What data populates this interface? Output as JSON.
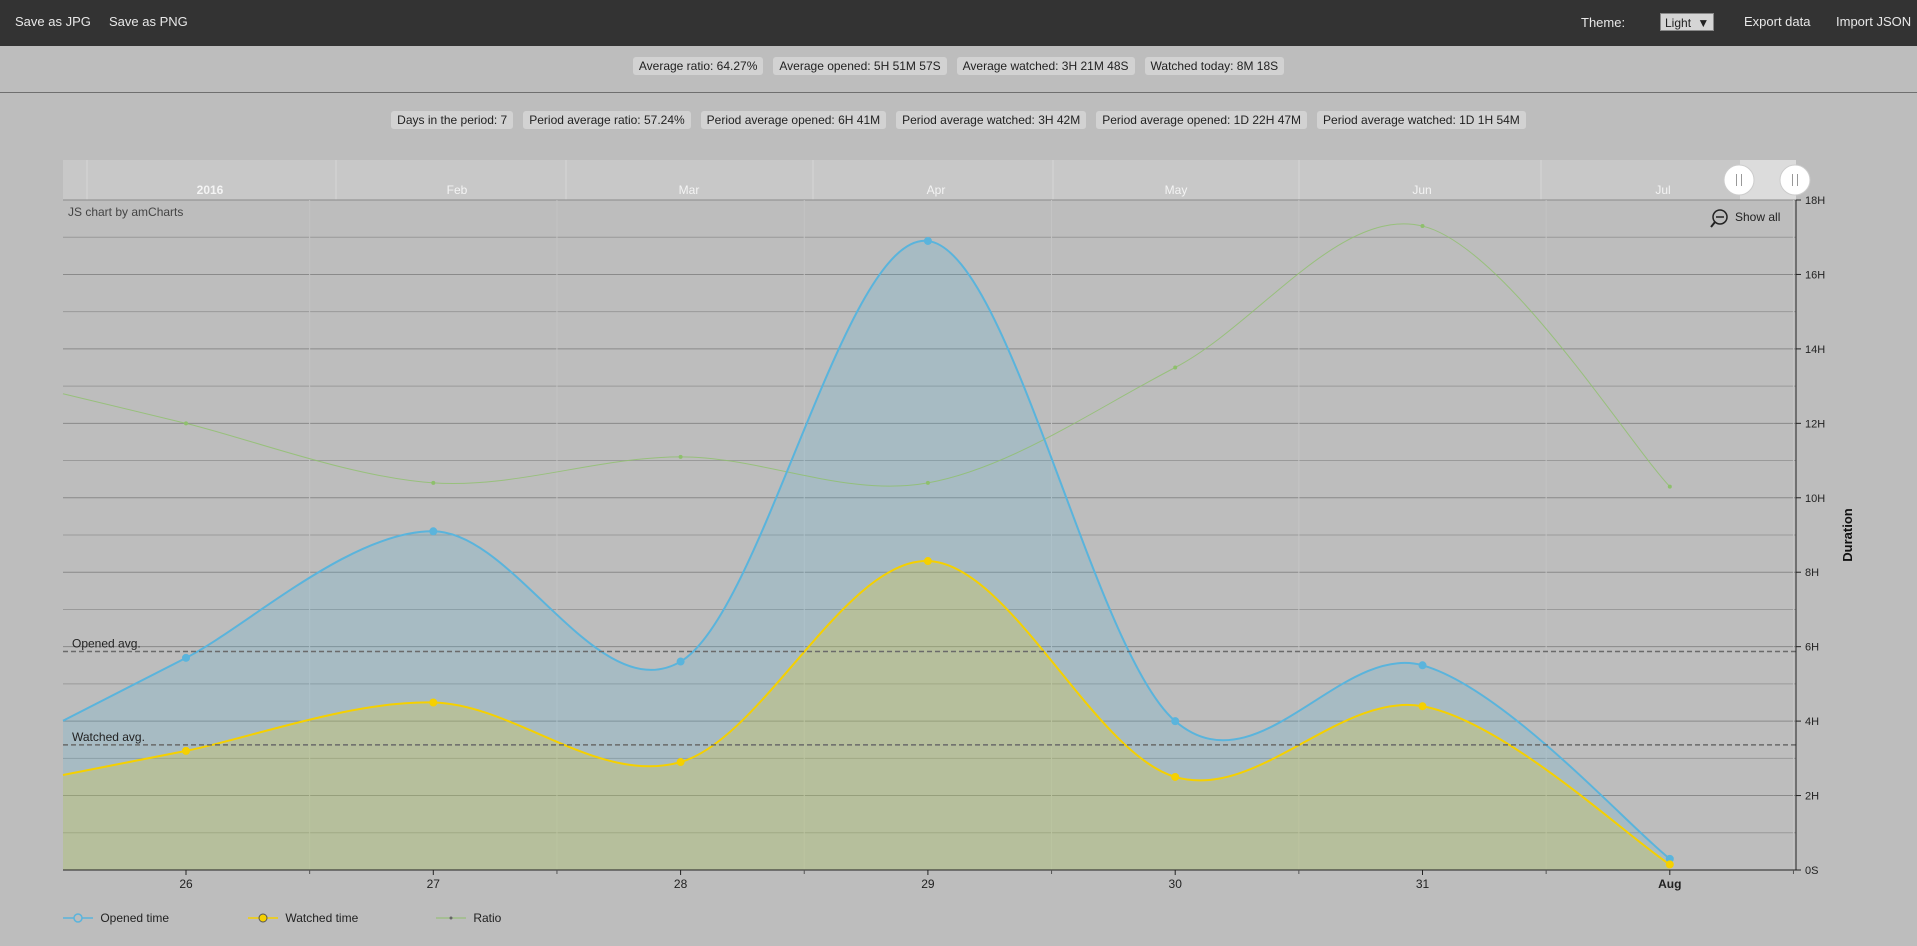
{
  "toolbar": {
    "save_jpg": "Save as JPG",
    "save_png": "Save as PNG",
    "theme_label": "Theme:",
    "theme_value": "Light",
    "export_data": "Export data",
    "import_json": "Import JSON"
  },
  "stats_top": [
    "Average ratio: 64.27%",
    "Average opened: 5H 51M 57S",
    "Average watched: 3H 21M 48S",
    "Watched today: 8M 18S"
  ],
  "stats_period": [
    "Days in the period: 7",
    "Period average ratio: 57.24%",
    "Period average opened: 6H 41M",
    "Period average watched: 3H 42M",
    "Period average opened: 1D 22H 47M",
    "Period average watched: 1D 1H 54M"
  ],
  "colors": {
    "opened": "#5ab4dc",
    "watched": "#f5d000",
    "ratio": "#8ec06c",
    "topbar": "#333333",
    "background": "#bdbdbd"
  },
  "chart_data": {
    "type": "area",
    "credit": "JS chart by amCharts",
    "ylabel": "Duration",
    "yticks": [
      "0S",
      "2H",
      "4H",
      "6H",
      "8H",
      "10H",
      "12H",
      "14H",
      "16H",
      "18H"
    ],
    "ylim": [
      0,
      18
    ],
    "x_dates": [
      "2016-07-26",
      "2016-07-27",
      "2016-07-28",
      "2016-07-29",
      "2016-07-30",
      "2016-07-31",
      "2016-08-01"
    ],
    "categories": [
      "26",
      "27",
      "28",
      "29",
      "30",
      "31",
      "Aug"
    ],
    "series": [
      {
        "name": "Opened time",
        "values": [
          5.7,
          9.1,
          5.6,
          16.9,
          4.0,
          5.5,
          0.3
        ]
      },
      {
        "name": "Watched time",
        "values": [
          3.2,
          4.5,
          2.9,
          8.3,
          2.5,
          4.4,
          0.15
        ]
      },
      {
        "name": "Ratio",
        "values": [
          12.0,
          10.4,
          11.1,
          10.4,
          13.5,
          17.3,
          10.3
        ]
      }
    ],
    "guides": [
      {
        "label": "Opened avg.",
        "value": 5.87
      },
      {
        "label": "Watched avg.",
        "value": 3.36
      }
    ],
    "scrollbar": {
      "months": [
        "2016",
        "Feb",
        "Mar",
        "Apr",
        "May",
        "Jun",
        "Jul"
      ],
      "show_all": "Show all"
    },
    "legend_position": "bottom-left"
  }
}
